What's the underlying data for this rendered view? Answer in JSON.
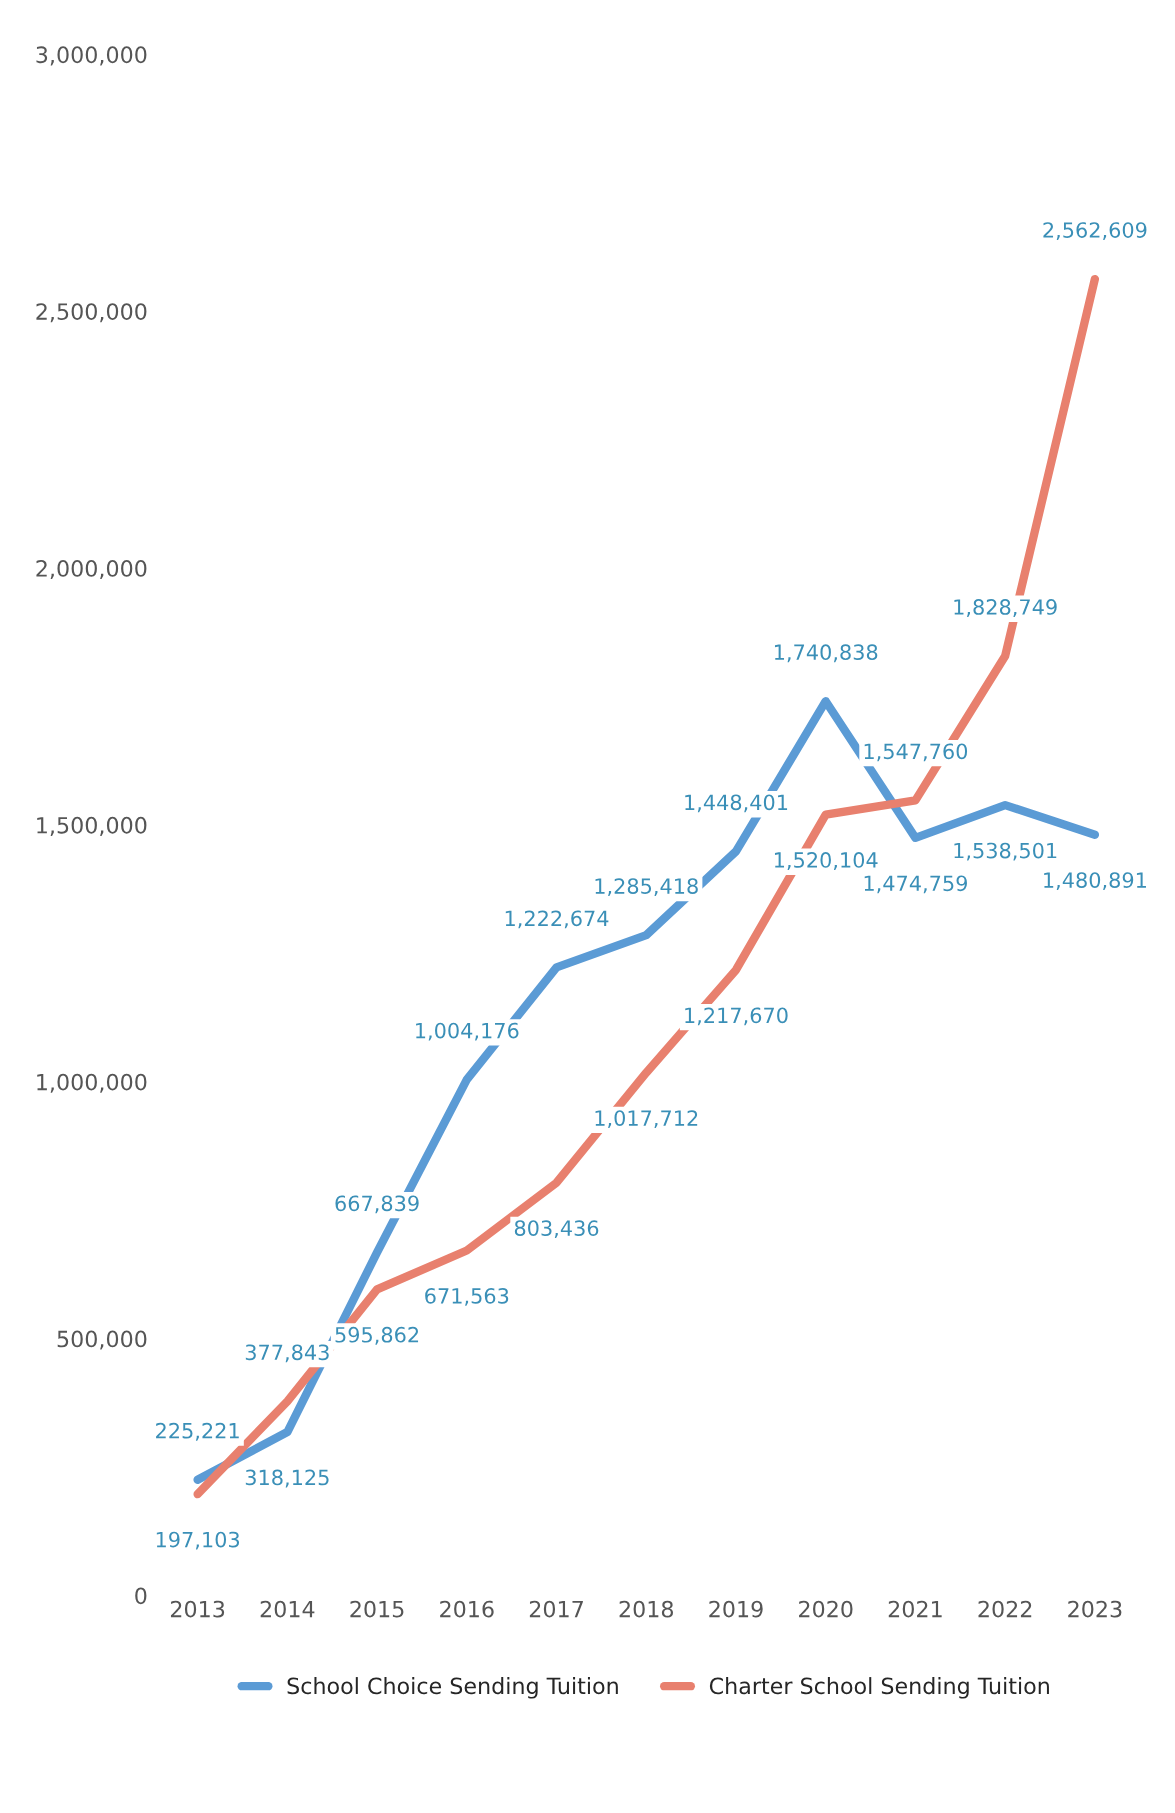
{
  "chart_data": {
    "type": "line",
    "categories": [
      "2013",
      "2014",
      "2015",
      "2016",
      "2017",
      "2018",
      "2019",
      "2020",
      "2021",
      "2022",
      "2023"
    ],
    "series": [
      {
        "name": "School Choice Sending Tuition",
        "color": "#5b9bd5",
        "values": [
          225221,
          318125,
          667839,
          1004176,
          1222674,
          1285418,
          1448401,
          1740838,
          1474759,
          1538501,
          1480891
        ],
        "value_labels": [
          "225,221",
          "318,125",
          "667,839",
          "1,004,176",
          "1,222,674",
          "1,285,418",
          "1,448,401",
          "1,740,838",
          "1,474,759",
          "1,538,501",
          "1,480,891"
        ]
      },
      {
        "name": "Charter School Sending Tuition",
        "color": "#e8806e",
        "values": [
          197103,
          377843,
          595862,
          671563,
          803436,
          1017712,
          1217670,
          1520104,
          1547760,
          1828749,
          2562609
        ],
        "value_labels": [
          "197,103",
          "377,843",
          "595,862",
          "671,563",
          "803,436",
          "1,017,712",
          "1,217,670",
          "1,520,104",
          "1,547,760",
          "1,828,749",
          "2,562,609"
        ]
      }
    ],
    "ylim": [
      0,
      3000000
    ],
    "yticks": [
      {
        "value": 0,
        "label": "0"
      },
      {
        "value": 500000,
        "label": "500,000"
      },
      {
        "value": 1000000,
        "label": "1,000,000"
      },
      {
        "value": 1500000,
        "label": "1,500,000"
      },
      {
        "value": 2000000,
        "label": "2,000,000"
      },
      {
        "value": 2500000,
        "label": "2,500,000"
      },
      {
        "value": 3000000,
        "label": "3,000,000"
      }
    ],
    "grid": false,
    "legend": "bottom",
    "marker": "none",
    "line_style": "solid"
  }
}
